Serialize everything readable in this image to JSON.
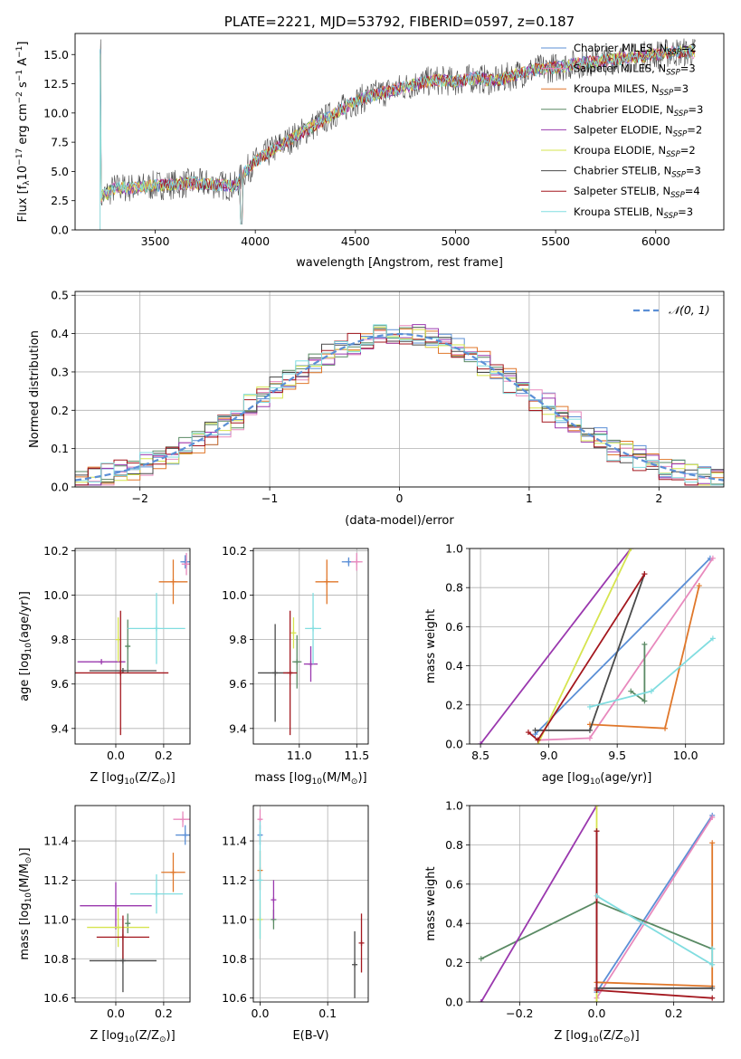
{
  "colors": {
    "blue": "#5b8fd6",
    "pink": "#e889bd",
    "orange": "#e0772a",
    "green": "#5a8a64",
    "purple": "#9a38ae",
    "yellow": "#d6e44f",
    "dark": "#4a4a4a",
    "red": "#a3171e",
    "cyan": "#81dde0",
    "gauss": "#5b8fd6",
    "grid": "#b0b0b0"
  },
  "chart_data": [
    {
      "id": "spectrum",
      "type": "line",
      "title": "PLATE=2221, MJD=53792, FIBERID=0597, z=0.187",
      "xlabel": "wavelength [Angstrom, rest frame]",
      "ylabel": "Flux [f",
      "ylabel_sub": "λ",
      "ylabel_mid": "10",
      "ylabel_sup": "−17",
      "ylabel_tail": " erg cm",
      "ylabel_sup2": "−2",
      "ylabel_mid2": " s",
      "ylabel_sup3": "−1",
      "ylabel_tail2": " A",
      "ylabel_sup4": "−1",
      "ylabel_end": "]",
      "xlim": [
        3100,
        6340
      ],
      "ylim": [
        0,
        16.8
      ],
      "xticks": [
        3500,
        4000,
        4500,
        5000,
        5500,
        6000
      ],
      "yticks": [
        0.0,
        2.5,
        5.0,
        7.5,
        10.0,
        12.5,
        15.0
      ],
      "ytick_labels": [
        "0.0",
        "2.5",
        "5.0",
        "7.5",
        "10.0",
        "12.5",
        "15.0"
      ],
      "grid": false,
      "legend_position": "top-right",
      "continuum_x": [
        3230,
        3300,
        3400,
        3500,
        3600,
        3700,
        3800,
        3900,
        3950,
        4000,
        4100,
        4200,
        4300,
        4400,
        4500,
        4600,
        4700,
        4800,
        4900,
        5000,
        5100,
        5200,
        5300,
        5400,
        5500,
        5600,
        5700,
        5800,
        5900,
        6000,
        6100,
        6200
      ],
      "continuum_y": [
        2.8,
        3.6,
        3.6,
        3.8,
        3.9,
        4.0,
        3.9,
        3.7,
        5.0,
        5.8,
        7.0,
        8.0,
        9.0,
        10.0,
        11.0,
        11.6,
        12.0,
        12.5,
        12.8,
        12.7,
        13.0,
        12.7,
        13.3,
        13.7,
        13.9,
        14.2,
        14.4,
        14.6,
        14.8,
        15.0,
        15.2,
        15.2
      ],
      "series": [
        {
          "name": "Chabrier MILES, N",
          "sub": "SSP",
          "tail": "=2",
          "color": "blue"
        },
        {
          "name": "Salpeter MILES, N",
          "sub": "SSP",
          "tail": "=3",
          "color": "pink"
        },
        {
          "name": "Kroupa MILES, N",
          "sub": "SSP",
          "tail": "=3",
          "color": "orange"
        },
        {
          "name": "Chabrier ELODIE, N",
          "sub": "SSP",
          "tail": "=3",
          "color": "green"
        },
        {
          "name": "Salpeter ELODIE, N",
          "sub": "SSP",
          "tail": "=2",
          "color": "purple"
        },
        {
          "name": "Kroupa ELODIE, N",
          "sub": "SSP",
          "tail": "=2",
          "color": "yellow"
        },
        {
          "name": "Chabrier STELIB, N",
          "sub": "SSP",
          "tail": "=3",
          "color": "dark"
        },
        {
          "name": "Salpeter STELIB, N",
          "sub": "SSP",
          "tail": "=4",
          "color": "red"
        },
        {
          "name": "Kroupa STELIB, N",
          "sub": "SSP",
          "tail": "=3",
          "color": "cyan"
        }
      ]
    },
    {
      "id": "residuals",
      "type": "histogram",
      "xlabel": "(data-model)/error",
      "ylabel": "Normed distribution",
      "xlim": [
        -2.5,
        2.5
      ],
      "ylim": [
        0,
        0.51
      ],
      "xticks": [
        -2,
        -1,
        0,
        1,
        2
      ],
      "xtick_labels": [
        "−2",
        "−1",
        "0",
        "1",
        "2"
      ],
      "yticks": [
        0.0,
        0.1,
        0.2,
        0.3,
        0.4,
        0.5
      ],
      "ytick_labels": [
        "0.0",
        "0.1",
        "0.2",
        "0.3",
        "0.4",
        "0.5"
      ],
      "grid": true,
      "legend_label": "𝒩(0, 1)",
      "legend_position": "top-right",
      "bin_width": 0.1
    },
    {
      "id": "age_vs_Z",
      "type": "scatter",
      "xlabel": "Z [log",
      "xlabel_sub": "10",
      "xlabel_tail": "(Z/Z",
      "xlabel_sub2": "⊙",
      "xlabel_end": ")]",
      "ylabel": "age  [log",
      "ylabel_sub": "10",
      "ylabel_tail": "(age/yr)]",
      "xlim": [
        -0.17,
        0.31
      ],
      "ylim": [
        9.33,
        10.21
      ],
      "xticks": [
        0.0,
        0.2
      ],
      "xtick_labels": [
        "0.0",
        "0.2"
      ],
      "yticks": [
        9.4,
        9.6,
        9.8,
        10.0,
        10.2
      ],
      "ytick_labels": [
        "9.4",
        "9.6",
        "9.8",
        "10.0",
        "10.2"
      ],
      "grid": true,
      "points": [
        {
          "x": 0.29,
          "y": 10.15,
          "xerr": 0.02,
          "yerr": 0.03,
          "color": "blue"
        },
        {
          "x": 0.295,
          "y": 10.14,
          "xerr": 0.02,
          "yerr": 0.05,
          "color": "pink"
        },
        {
          "x": 0.24,
          "y": 10.06,
          "xerr": 0.06,
          "yerr": 0.1,
          "color": "orange"
        },
        {
          "x": 0.05,
          "y": 9.77,
          "xerr": 0.01,
          "yerr": 0.12,
          "color": "green"
        },
        {
          "x": -0.06,
          "y": 9.7,
          "xerr": 0.1,
          "yerr": 0.0,
          "color": "purple"
        },
        {
          "x": 0.01,
          "y": 9.8,
          "xerr": 0.0,
          "yerr": 0.1,
          "color": "yellow"
        },
        {
          "x": 0.03,
          "y": 9.66,
          "xerr": 0.14,
          "yerr": 0.0,
          "color": "dark"
        },
        {
          "x": 0.02,
          "y": 9.65,
          "xerr": 0.2,
          "yerr": 0.28,
          "color": "red"
        },
        {
          "x": 0.17,
          "y": 9.85,
          "xerr": 0.12,
          "yerr": 0.16,
          "color": "cyan"
        }
      ]
    },
    {
      "id": "age_vs_mass",
      "type": "scatter",
      "xlabel": "mass [log",
      "xlabel_sub": "10",
      "xlabel_tail": "(M/M",
      "xlabel_sub2": "⊙",
      "xlabel_end": ")]",
      "xlim": [
        10.6,
        11.6
      ],
      "ylim": [
        9.33,
        10.21
      ],
      "xticks": [
        11.0,
        11.5
      ],
      "xtick_labels": [
        "11.0",
        "11.5"
      ],
      "yticks": [
        9.4,
        9.6,
        9.8,
        10.0,
        10.2
      ],
      "ytick_labels": [
        "9.4",
        "9.6",
        "9.8",
        "10.0",
        "10.2"
      ],
      "grid": true,
      "points": [
        {
          "x": 11.43,
          "y": 10.15,
          "xerr": 0.06,
          "yerr": 0.02,
          "color": "blue"
        },
        {
          "x": 11.5,
          "y": 10.15,
          "xerr": 0.05,
          "yerr": 0.04,
          "color": "pink"
        },
        {
          "x": 11.24,
          "y": 10.06,
          "xerr": 0.1,
          "yerr": 0.1,
          "color": "orange"
        },
        {
          "x": 10.98,
          "y": 9.7,
          "xerr": 0.04,
          "yerr": 0.12,
          "color": "green"
        },
        {
          "x": 11.1,
          "y": 9.69,
          "xerr": 0.06,
          "yerr": 0.08,
          "color": "purple"
        },
        {
          "x": 10.95,
          "y": 9.83,
          "xerr": 0.0,
          "yerr": 0.07,
          "color": "yellow"
        },
        {
          "x": 10.79,
          "y": 9.65,
          "xerr": 0.15,
          "yerr": 0.22,
          "color": "dark"
        },
        {
          "x": 10.92,
          "y": 9.65,
          "xerr": 0.06,
          "yerr": 0.28,
          "color": "red"
        },
        {
          "x": 11.12,
          "y": 9.85,
          "xerr": 0.07,
          "yerr": 0.16,
          "color": "cyan"
        }
      ]
    },
    {
      "id": "massweight_vs_age",
      "type": "line",
      "xlabel": "age  [log",
      "xlabel_sub": "10",
      "xlabel_tail": "(age/yr)]",
      "ylabel": "mass weight",
      "xlim": [
        8.42,
        10.28
      ],
      "ylim": [
        0,
        1
      ],
      "xticks": [
        8.5,
        9.0,
        9.5,
        10.0
      ],
      "xtick_labels": [
        "8.5",
        "9.0",
        "9.5",
        "10.0"
      ],
      "yticks": [
        0.0,
        0.2,
        0.4,
        0.6,
        0.8,
        1.0
      ],
      "ytick_labels": [
        "0.0",
        "0.2",
        "0.4",
        "0.6",
        "0.8",
        "1.0"
      ],
      "grid": true,
      "series": [
        {
          "color": "blue",
          "x": [
            8.9,
            10.18
          ],
          "y": [
            0.05,
            0.95
          ]
        },
        {
          "color": "pink",
          "x": [
            8.92,
            9.3,
            10.2
          ],
          "y": [
            0.02,
            0.03,
            0.95
          ]
        },
        {
          "color": "orange",
          "x": [
            9.3,
            9.85,
            10.1
          ],
          "y": [
            0.1,
            0.08,
            0.81
          ]
        },
        {
          "color": "green",
          "x": [
            9.6,
            9.7,
            9.7
          ],
          "y": [
            0.27,
            0.22,
            0.51
          ]
        },
        {
          "color": "purple",
          "x": [
            8.5,
            9.6
          ],
          "y": [
            0.0,
            1.0
          ]
        },
        {
          "color": "yellow",
          "x": [
            8.92,
            9.6
          ],
          "y": [
            0.0,
            1.0
          ]
        },
        {
          "color": "dark",
          "x": [
            8.9,
            9.3,
            9.7
          ],
          "y": [
            0.07,
            0.07,
            0.87
          ]
        },
        {
          "color": "red",
          "x": [
            8.85,
            8.92,
            9.7
          ],
          "y": [
            0.06,
            0.02,
            0.87
          ]
        },
        {
          "color": "cyan",
          "x": [
            9.3,
            9.75,
            10.2
          ],
          "y": [
            0.19,
            0.27,
            0.54
          ]
        }
      ]
    },
    {
      "id": "mass_vs_Z",
      "type": "scatter",
      "xlabel": "Z [log",
      "xlabel_sub": "10",
      "xlabel_tail": "(Z/Z",
      "xlabel_sub2": "⊙",
      "xlabel_end": ")]",
      "ylabel": "mass [log",
      "ylabel_sub": "10",
      "ylabel_tail": "(M/M",
      "ylabel_sub2": "⊙",
      "ylabel_end": ")]",
      "xlim": [
        -0.17,
        0.31
      ],
      "ylim": [
        10.58,
        11.58
      ],
      "xticks": [
        0.0,
        0.2
      ],
      "xtick_labels": [
        "0.0",
        "0.2"
      ],
      "yticks": [
        10.6,
        10.8,
        11.0,
        11.2,
        11.4
      ],
      "ytick_labels": [
        "10.6",
        "10.8",
        "11.0",
        "11.2",
        "11.4"
      ],
      "grid": true,
      "points": [
        {
          "x": 0.29,
          "y": 11.43,
          "xerr": 0.04,
          "yerr": 0.05,
          "color": "blue"
        },
        {
          "x": 0.28,
          "y": 11.51,
          "xerr": 0.04,
          "yerr": 0.04,
          "color": "pink"
        },
        {
          "x": 0.24,
          "y": 11.24,
          "xerr": 0.05,
          "yerr": 0.1,
          "color": "orange"
        },
        {
          "x": 0.05,
          "y": 10.98,
          "xerr": 0.0,
          "yerr": 0.05,
          "color": "green"
        },
        {
          "x": 0.0,
          "y": 11.07,
          "xerr": 0.15,
          "yerr": 0.12,
          "color": "purple"
        },
        {
          "x": 0.01,
          "y": 10.96,
          "xerr": 0.13,
          "yerr": 0.1,
          "color": "yellow"
        },
        {
          "x": 0.03,
          "y": 10.79,
          "xerr": 0.14,
          "yerr": 0.16,
          "color": "dark"
        },
        {
          "x": 0.03,
          "y": 10.91,
          "xerr": 0.11,
          "yerr": 0.11,
          "color": "red"
        },
        {
          "x": 0.17,
          "y": 11.13,
          "xerr": 0.11,
          "yerr": 0.1,
          "color": "cyan"
        }
      ]
    },
    {
      "id": "mass_vs_ebv",
      "type": "scatter",
      "xlabel": "E(B-V)",
      "xlim": [
        -0.01,
        0.16
      ],
      "ylim": [
        10.58,
        11.58
      ],
      "xticks": [
        0.0,
        0.1
      ],
      "xtick_labels": [
        "0.0",
        "0.1"
      ],
      "yticks": [
        10.6,
        10.8,
        11.0,
        11.2,
        11.4
      ],
      "ytick_labels": [
        "10.6",
        "10.8",
        "11.0",
        "11.2",
        "11.4"
      ],
      "grid": true,
      "points": [
        {
          "x": 0.0,
          "y": 11.43,
          "xerr": 0.0,
          "yerr": 0.05,
          "color": "blue"
        },
        {
          "x": 0.0,
          "y": 11.51,
          "xerr": 0.0,
          "yerr": 0.05,
          "color": "pink"
        },
        {
          "x": 0.0,
          "y": 11.25,
          "xerr": 0.0,
          "yerr": 0.1,
          "color": "orange"
        },
        {
          "x": 0.02,
          "y": 11.0,
          "xerr": 0.0,
          "yerr": 0.05,
          "color": "green"
        },
        {
          "x": 0.02,
          "y": 11.1,
          "xerr": 0.0,
          "yerr": 0.1,
          "color": "purple"
        },
        {
          "x": 0.0,
          "y": 11.0,
          "xerr": 0.0,
          "yerr": 0.1,
          "color": "yellow"
        },
        {
          "x": 0.14,
          "y": 10.77,
          "xerr": 0.0,
          "yerr": 0.17,
          "color": "dark"
        },
        {
          "x": 0.15,
          "y": 10.88,
          "xerr": 0.0,
          "yerr": 0.15,
          "color": "red"
        },
        {
          "x": 0.0,
          "y": 11.2,
          "xerr": 0.0,
          "yerr": 0.3,
          "color": "cyan"
        }
      ]
    },
    {
      "id": "massweight_vs_Z",
      "type": "line",
      "xlabel": "Z [log",
      "xlabel_sub": "10",
      "xlabel_tail": "(Z/Z",
      "xlabel_sub2": "⊙",
      "xlabel_end": ")]",
      "ylabel": "mass weight",
      "xlim": [
        -0.33,
        0.33
      ],
      "ylim": [
        0,
        1
      ],
      "xticks": [
        -0.2,
        0.0,
        0.2
      ],
      "xtick_labels": [
        "−0.2",
        "0.0",
        "0.2"
      ],
      "yticks": [
        0.0,
        0.2,
        0.4,
        0.6,
        0.8,
        1.0
      ],
      "ytick_labels": [
        "0.0",
        "0.2",
        "0.4",
        "0.6",
        "0.8",
        "1.0"
      ],
      "grid": true,
      "series": [
        {
          "color": "blue",
          "x": [
            0.0,
            0.3
          ],
          "y": [
            0.05,
            0.95
          ]
        },
        {
          "color": "pink",
          "x": [
            0.0,
            0.3
          ],
          "y": [
            0.02,
            0.94
          ]
        },
        {
          "color": "orange",
          "x": [
            0.0,
            0.3,
            0.3
          ],
          "y": [
            0.1,
            0.08,
            0.81
          ]
        },
        {
          "color": "green",
          "x": [
            -0.3,
            0.0,
            0.3
          ],
          "y": [
            0.22,
            0.51,
            0.27
          ]
        },
        {
          "color": "purple",
          "x": [
            -0.3,
            0.0
          ],
          "y": [
            0.0,
            1.0
          ]
        },
        {
          "color": "yellow",
          "x": [
            0.0,
            0.0
          ],
          "y": [
            0.0,
            1.0
          ]
        },
        {
          "color": "dark",
          "x": [
            0.0,
            0.0,
            0.3
          ],
          "y": [
            0.87,
            0.07,
            0.07
          ]
        },
        {
          "color": "red",
          "x": [
            0.0,
            0.0,
            0.3
          ],
          "y": [
            0.87,
            0.06,
            0.02
          ]
        },
        {
          "color": "cyan",
          "x": [
            0.0,
            0.3,
            0.3
          ],
          "y": [
            0.54,
            0.19,
            0.27
          ]
        }
      ]
    }
  ]
}
